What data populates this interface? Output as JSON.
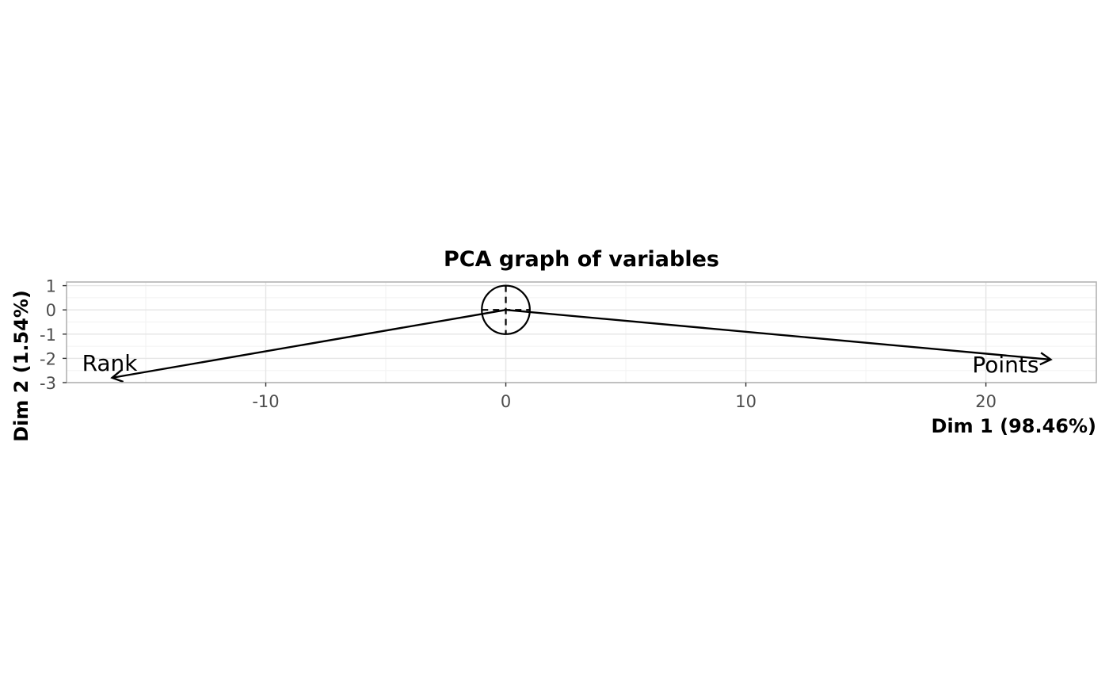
{
  "chart_data": {
    "type": "scatter",
    "subtype": "pca-variables-biplot",
    "title": "PCA graph of variables",
    "xlabel": "Dim 1 (98.46%)",
    "ylabel": "Dim 2 (1.54%)",
    "xlim": [
      -18.3,
      24.6
    ],
    "ylim": [
      -3.0,
      1.15
    ],
    "x_ticks": [
      -10,
      0,
      10,
      20
    ],
    "x_tick_labels": [
      "-10",
      "0",
      "10",
      "20"
    ],
    "y_ticks": [
      1,
      0,
      -1,
      -2,
      -3
    ],
    "y_tick_labels": [
      "1",
      "0",
      "-1",
      "-2",
      "-3"
    ],
    "grid": true,
    "correlation_circle_radius": 1,
    "vectors": [
      {
        "name": "Rank",
        "x": -16.4,
        "y": -2.8
      },
      {
        "name": "Points",
        "x": 22.7,
        "y": -2.05
      }
    ],
    "colors": {
      "vector": "#000000",
      "grid_major": "#e5e5e5",
      "grid_minor": "#f2f2f2",
      "panel_border": "#b3b3b3",
      "tick_text": "#4d4d4d"
    }
  }
}
